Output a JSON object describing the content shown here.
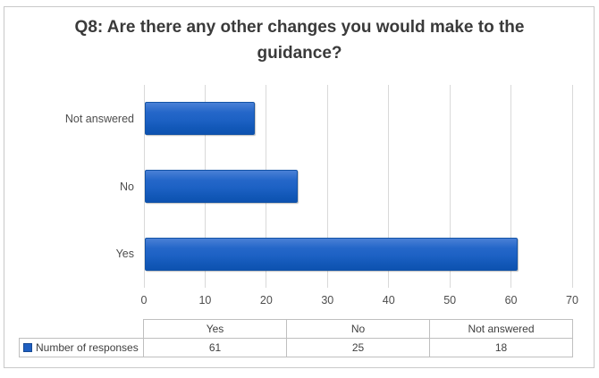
{
  "title": "Q8: Are there any other changes you would make to the guidance?",
  "chart_data": {
    "type": "bar",
    "orientation": "horizontal",
    "title": "Q8: Are there any other changes you would make to the guidance?",
    "categories": [
      "Yes",
      "No",
      "Not answered"
    ],
    "series": [
      {
        "name": "Number of responses",
        "values": [
          61,
          25,
          18
        ]
      }
    ],
    "bar_order_top_to_bottom": [
      "Not answered",
      "No",
      "Yes"
    ],
    "xlabel": "",
    "ylabel": "",
    "xlim": [
      0,
      70
    ],
    "xticks": [
      0,
      10,
      20,
      30,
      40,
      50,
      60,
      70
    ],
    "grid": "vertical gridlines only",
    "legend_position": "bottom data table, left of row"
  },
  "data_table": {
    "column_headers": [
      "Yes",
      "No",
      "Not answered"
    ],
    "row_label": "Number of responses",
    "values": [
      "61",
      "25",
      "18"
    ]
  },
  "colors": {
    "bar_fill_top": "#4a80d6",
    "bar_fill_mid": "#1d61c4",
    "bar_fill_bottom": "#0d52b0",
    "bar_border": "#1353a6",
    "legend_marker": "#1f5fc1",
    "gridline": "#d9d9d9",
    "axis_text": "#4d4d4d",
    "title_text": "#3a3a3a",
    "table_border": "#bfbfbf",
    "table_text": "#404040",
    "frame_border": "#c9c9c9",
    "background": "#ffffff"
  }
}
